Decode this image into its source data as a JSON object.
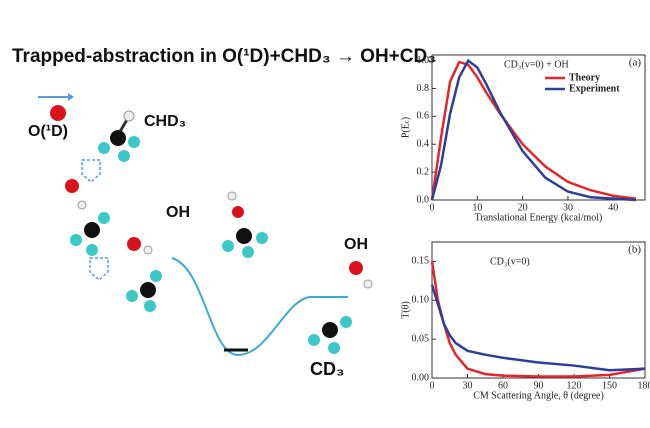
{
  "title": "Trapped-abstraction in O(¹D)+CHD₃ → OH+CD₃",
  "diagram": {
    "labels": [
      "O(¹D)",
      "CHD₃",
      "OH",
      "OH",
      "CD₃"
    ]
  },
  "chart_data": [
    {
      "type": "line",
      "panel": "(a)",
      "annotation": "CD₃(v=0) + OH",
      "xlabel": "Translational Energy (kcal/mol)",
      "ylabel": "P(Eₜ)",
      "x": [
        0,
        2,
        4,
        6,
        8,
        10,
        12,
        15,
        20,
        25,
        30,
        35,
        40,
        45
      ],
      "series": [
        {
          "name": "Theory",
          "color": "#e3262b",
          "values": [
            0,
            0.45,
            0.85,
            0.99,
            0.97,
            0.88,
            0.77,
            0.62,
            0.4,
            0.24,
            0.13,
            0.07,
            0.03,
            0.01
          ]
        },
        {
          "name": "Experiment",
          "color": "#2c3f9a",
          "values": [
            0,
            0.25,
            0.62,
            0.88,
            1.0,
            0.95,
            0.83,
            0.63,
            0.35,
            0.16,
            0.06,
            0.02,
            0.01,
            0
          ]
        }
      ],
      "xlim": [
        0,
        47
      ],
      "xticks": [
        0,
        10,
        20,
        30,
        40
      ],
      "ylim": [
        0,
        1.04
      ],
      "yticks": [
        {
          "value": 0,
          "label": "0.0"
        },
        {
          "value": 0.2,
          "label": "0.2"
        },
        {
          "value": 0.4,
          "label": "0.4"
        },
        {
          "value": 0.6,
          "label": "0.6"
        },
        {
          "value": 0.8,
          "label": "0.8"
        },
        {
          "value": 1,
          "label": "1.0"
        }
      ],
      "legend": "upper right"
    },
    {
      "type": "line",
      "panel": "(b)",
      "annotation": "CD₃(v=0)",
      "xlabel": "CM Scattering Angle, θ (degree)",
      "ylabel": "T(θ)",
      "x": [
        0,
        5,
        10,
        15,
        20,
        30,
        45,
        60,
        90,
        120,
        150,
        180
      ],
      "series": [
        {
          "name": "Theory",
          "color": "#e3262b",
          "values": [
            0.15,
            0.1,
            0.07,
            0.045,
            0.03,
            0.012,
            0.005,
            0.003,
            0.002,
            0.002,
            0.004,
            0.012
          ]
        },
        {
          "name": "Experiment",
          "color": "#2c3f9a",
          "values": [
            0.12,
            0.095,
            0.07,
            0.055,
            0.045,
            0.035,
            0.03,
            0.026,
            0.02,
            0.016,
            0.01,
            0.012
          ]
        }
      ],
      "xlim": [
        0,
        180
      ],
      "xticks": [
        0,
        30,
        60,
        90,
        120,
        150,
        180
      ],
      "ylim": [
        0,
        0.175
      ],
      "yticks": [
        {
          "value": 0,
          "label": "0.00"
        },
        {
          "value": 0.05,
          "label": "0.05"
        },
        {
          "value": 0.1,
          "label": "0.10"
        },
        {
          "value": 0.15,
          "label": "0.15"
        }
      ]
    }
  ]
}
